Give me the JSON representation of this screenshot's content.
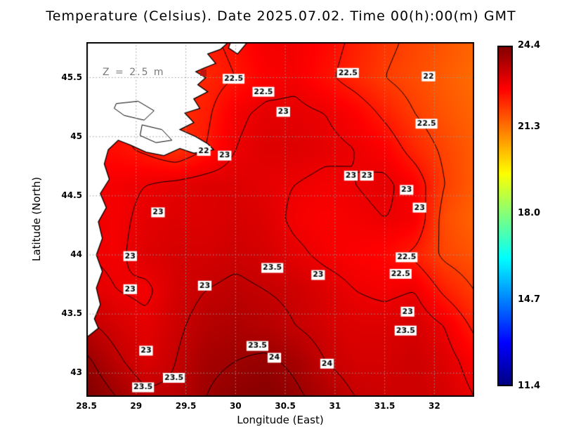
{
  "title": "Temperature (Celsius). Date 2025.07.02. Time 00(h):00(m) GMT",
  "annotation": {
    "depth_label": "Z = 2.5 m"
  },
  "axes": {
    "xlabel": "Longitude (East)",
    "ylabel": "Latitude (North)",
    "x_tick_labels": [
      "28.5",
      "29",
      "29.5",
      "30",
      "30.5",
      "31",
      "31.5",
      "32"
    ],
    "x_tick_values": [
      28.5,
      29,
      29.5,
      30,
      30.5,
      31,
      31.5,
      32
    ],
    "y_tick_labels": [
      "43",
      "43.5",
      "44",
      "44.5",
      "45",
      "45.5"
    ],
    "y_tick_values": [
      43,
      43.5,
      44,
      44.5,
      45,
      45.5
    ]
  },
  "colorbar": {
    "tick_labels": [
      "24.4",
      "21.3",
      "18.0",
      "14.7",
      "11.4"
    ],
    "tick_values": [
      24.4,
      21.3,
      18.0,
      14.7,
      11.4
    ],
    "min": 11.4,
    "max": 24.4,
    "colormap": "jet"
  },
  "chart_data": {
    "type": "heatmap",
    "title": "Temperature (Celsius). Date 2025.07.02. Time 00(h):00(m) GMT",
    "xlabel": "Longitude (East)",
    "ylabel": "Latitude (North)",
    "units": "Celsius",
    "depth_m": 2.5,
    "grid_on": true,
    "x_range": [
      28.5,
      32.4
    ],
    "y_range": [
      42.8,
      45.8
    ],
    "lon": [
      28.5,
      28.8,
      29.1,
      29.4,
      29.7,
      30.0,
      30.3,
      30.6,
      30.9,
      31.2,
      31.5,
      31.8,
      32.1,
      32.4
    ],
    "lat_north_to_south": [
      45.8,
      45.5,
      45.2,
      44.9,
      44.6,
      44.3,
      44.0,
      43.7,
      43.4,
      43.1,
      42.8
    ],
    "sst_values": [
      [
        22.5,
        22.5,
        22.5,
        22.4,
        22.4,
        22.6,
        22.9,
        22.9,
        22.7,
        22.4,
        22.1,
        21.9,
        21.7,
        21.5
      ],
      [
        22.5,
        22.5,
        22.4,
        22.3,
        22.3,
        22.5,
        22.8,
        22.9,
        22.6,
        22.3,
        22.0,
        21.8,
        21.6,
        21.4
      ],
      [
        22.6,
        22.6,
        22.5,
        22.2,
        22.4,
        22.9,
        23.1,
        23.1,
        23.0,
        22.8,
        22.4,
        22.0,
        21.7,
        21.5
      ],
      [
        22.7,
        22.6,
        22.4,
        22.1,
        22.5,
        23.0,
        23.2,
        23.2,
        23.1,
        23.0,
        22.8,
        22.3,
        21.9,
        21.6
      ],
      [
        22.9,
        22.9,
        23.0,
        23.1,
        23.2,
        23.2,
        23.1,
        23.0,
        22.9,
        23.0,
        23.1,
        22.8,
        22.0,
        21.6
      ],
      [
        23.0,
        22.9,
        23.1,
        23.2,
        23.2,
        23.3,
        23.2,
        22.9,
        22.8,
        22.9,
        23.0,
        22.9,
        21.8,
        21.5
      ],
      [
        23.0,
        22.9,
        23.2,
        23.3,
        23.3,
        23.4,
        23.3,
        23.1,
        22.9,
        22.8,
        22.7,
        22.4,
        21.9,
        21.7
      ],
      [
        23.2,
        23.0,
        22.9,
        23.3,
        23.5,
        23.6,
        23.5,
        23.4,
        23.2,
        23.0,
        22.9,
        23.0,
        22.4,
        22.0
      ],
      [
        23.6,
        23.3,
        23.1,
        23.4,
        23.7,
        23.8,
        23.7,
        23.5,
        23.3,
        23.2,
        23.2,
        23.3,
        23.0,
        22.4
      ],
      [
        24.1,
        23.6,
        23.2,
        23.5,
        23.9,
        24.0,
        24.1,
        23.9,
        23.5,
        23.3,
        23.3,
        23.4,
        23.2,
        22.8
      ],
      [
        24.4,
        24.0,
        23.6,
        23.6,
        24.0,
        24.2,
        24.3,
        24.1,
        23.8,
        23.5,
        23.4,
        23.4,
        23.3,
        23.0
      ]
    ],
    "contour_levels": [
      22,
      22.5,
      23,
      23.5,
      24
    ],
    "contour_labels": [
      {
        "lon": 29.98,
        "lat": 45.49,
        "text": "22.5"
      },
      {
        "lon": 30.28,
        "lat": 45.38,
        "text": "22.5"
      },
      {
        "lon": 31.13,
        "lat": 45.54,
        "text": "22.5"
      },
      {
        "lon": 31.94,
        "lat": 45.51,
        "text": "22"
      },
      {
        "lon": 30.48,
        "lat": 45.21,
        "text": "23"
      },
      {
        "lon": 31.92,
        "lat": 45.11,
        "text": "22.5"
      },
      {
        "lon": 29.68,
        "lat": 44.88,
        "text": "22"
      },
      {
        "lon": 29.89,
        "lat": 44.84,
        "text": "23"
      },
      {
        "lon": 31.16,
        "lat": 44.67,
        "text": "23"
      },
      {
        "lon": 31.32,
        "lat": 44.67,
        "text": "23"
      },
      {
        "lon": 31.72,
        "lat": 44.55,
        "text": "23"
      },
      {
        "lon": 31.85,
        "lat": 44.4,
        "text": "23"
      },
      {
        "lon": 29.22,
        "lat": 44.36,
        "text": "23"
      },
      {
        "lon": 28.94,
        "lat": 43.99,
        "text": "23"
      },
      {
        "lon": 31.72,
        "lat": 43.98,
        "text": "22.5"
      },
      {
        "lon": 31.66,
        "lat": 43.84,
        "text": "22.5"
      },
      {
        "lon": 30.37,
        "lat": 43.89,
        "text": "23.5"
      },
      {
        "lon": 29.69,
        "lat": 43.74,
        "text": "23"
      },
      {
        "lon": 28.94,
        "lat": 43.71,
        "text": "23"
      },
      {
        "lon": 30.83,
        "lat": 43.83,
        "text": "23"
      },
      {
        "lon": 31.73,
        "lat": 43.52,
        "text": "23"
      },
      {
        "lon": 31.71,
        "lat": 43.36,
        "text": "23.5"
      },
      {
        "lon": 30.22,
        "lat": 43.23,
        "text": "23.5"
      },
      {
        "lon": 30.39,
        "lat": 43.13,
        "text": "24"
      },
      {
        "lon": 30.92,
        "lat": 43.08,
        "text": "24"
      },
      {
        "lon": 29.1,
        "lat": 43.19,
        "text": "23"
      },
      {
        "lon": 29.38,
        "lat": 42.96,
        "text": "23.5"
      },
      {
        "lon": 29.07,
        "lat": 42.88,
        "text": "23.5"
      }
    ],
    "land_polygon_lonlat": [
      [
        28.5,
        45.8
      ],
      [
        29.93,
        45.8
      ],
      [
        29.85,
        45.74
      ],
      [
        29.72,
        45.7
      ],
      [
        29.8,
        45.62
      ],
      [
        29.68,
        45.58
      ],
      [
        29.6,
        45.55
      ],
      [
        29.7,
        45.5
      ],
      [
        29.62,
        45.44
      ],
      [
        29.72,
        45.38
      ],
      [
        29.58,
        45.32
      ],
      [
        29.64,
        45.24
      ],
      [
        29.49,
        45.2
      ],
      [
        29.58,
        45.12
      ],
      [
        29.44,
        45.06
      ],
      [
        29.6,
        45.0
      ],
      [
        29.72,
        44.94
      ],
      [
        29.78,
        44.89
      ],
      [
        29.58,
        44.86
      ],
      [
        29.44,
        44.9
      ],
      [
        29.28,
        44.84
      ],
      [
        29.1,
        44.87
      ],
      [
        28.94,
        44.93
      ],
      [
        28.82,
        44.97
      ],
      [
        28.72,
        44.89
      ],
      [
        28.68,
        44.77
      ],
      [
        28.73,
        44.64
      ],
      [
        28.64,
        44.52
      ],
      [
        28.7,
        44.4
      ],
      [
        28.62,
        44.28
      ],
      [
        28.66,
        44.14
      ],
      [
        28.6,
        44.0
      ],
      [
        28.66,
        43.86
      ],
      [
        28.6,
        43.72
      ],
      [
        28.64,
        43.58
      ],
      [
        28.58,
        43.46
      ],
      [
        28.62,
        43.38
      ],
      [
        28.5,
        43.3
      ]
    ],
    "land_sliver_lonlat": [
      [
        29.95,
        45.8
      ],
      [
        30.12,
        45.8
      ],
      [
        30.02,
        45.7
      ],
      [
        29.93,
        45.75
      ]
    ],
    "lake_outlines_lonlat": [
      [
        [
          28.8,
          45.28
        ],
        [
          29.02,
          45.3
        ],
        [
          29.18,
          45.22
        ],
        [
          29.08,
          45.14
        ],
        [
          28.88,
          45.18
        ],
        [
          28.78,
          45.24
        ]
      ],
      [
        [
          29.06,
          45.1
        ],
        [
          29.26,
          45.06
        ],
        [
          29.36,
          44.97
        ],
        [
          29.2,
          44.95
        ],
        [
          29.04,
          45.01
        ]
      ]
    ],
    "marker": {
      "lon": 29.67,
      "lat": 45.54,
      "color": "#c11212"
    }
  }
}
